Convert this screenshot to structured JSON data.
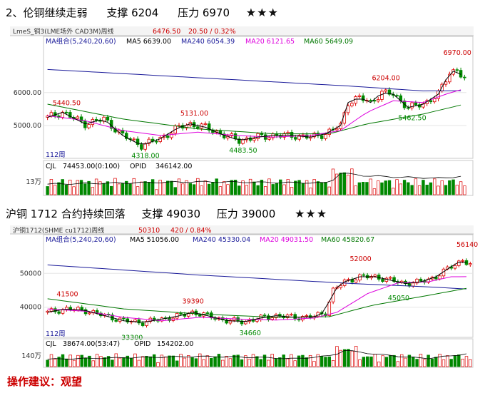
{
  "sections": [
    {
      "heading": {
        "title": "2、伦铜继续走弱",
        "support_label": "支撑 6204",
        "resistance_label": "压力 6970",
        "stars": "★★★"
      },
      "topbar": {
        "symbol": "LmeS_铜3(LME场外 CAD3M)周线",
        "price": "6476.50",
        "change": "20.50 / 0.32%"
      },
      "ma_legend": {
        "group": "MA组合(5,240,20,60)",
        "ma5": "MA5 6639.00",
        "ma240": "MA240 6054.39",
        "ma20": "MA20 6121.65",
        "ma60": "MA60 5649.09"
      },
      "period": "112周",
      "volume_legend": {
        "cjl": "CJL",
        "cjl_value": "74453.00(0:100)",
        "opid": "OPID",
        "opid_value": "346142.00"
      },
      "volume_axis": "13万",
      "colors": {
        "up": "#dd0000",
        "down": "#008800",
        "ma5": "#000000",
        "ma20": "#dd00dd",
        "ma60": "#007700",
        "ma240": "#1a1a99"
      },
      "chart_data": {
        "type": "candlestick",
        "y_ticks": [
          "6000.00",
          "5000.00"
        ],
        "y_tick_values": [
          6000,
          5000
        ],
        "ylim": [
          4050,
          7400
        ],
        "x_count": 112,
        "annotations": [
          {
            "text": "5440.50",
            "index": 4,
            "value": 5440.5
          },
          {
            "text": "5131.00",
            "index": 38,
            "value": 5131
          },
          {
            "text": "4318.00",
            "index": 25,
            "value": 4318
          },
          {
            "text": "4483.50",
            "index": 51,
            "value": 4483.5
          },
          {
            "text": "6204.00",
            "index": 89,
            "value": 6204
          },
          {
            "text": "5462.50",
            "index": 96,
            "value": 5462.5
          },
          {
            "text": "6970.00",
            "index": 108,
            "value": 6970
          }
        ],
        "close_path": [
          [
            0,
            5250
          ],
          [
            4,
            5400
          ],
          [
            10,
            5050
          ],
          [
            15,
            5200
          ],
          [
            20,
            4700
          ],
          [
            25,
            4400
          ],
          [
            30,
            4600
          ],
          [
            35,
            4950
          ],
          [
            38,
            5050
          ],
          [
            42,
            4950
          ],
          [
            46,
            4750
          ],
          [
            51,
            4550
          ],
          [
            56,
            4650
          ],
          [
            60,
            4700
          ],
          [
            65,
            4700
          ],
          [
            70,
            4650
          ],
          [
            74,
            4750
          ],
          [
            78,
            5000
          ],
          [
            80,
            5700
          ],
          [
            83,
            5850
          ],
          [
            86,
            5700
          ],
          [
            89,
            6000
          ],
          [
            92,
            5950
          ],
          [
            96,
            5550
          ],
          [
            100,
            5650
          ],
          [
            104,
            5950
          ],
          [
            107,
            6600
          ],
          [
            109,
            6700
          ],
          [
            111,
            6400
          ]
        ],
        "ma20_path": [
          [
            0,
            5300
          ],
          [
            10,
            5150
          ],
          [
            20,
            4850
          ],
          [
            30,
            4700
          ],
          [
            40,
            4800
          ],
          [
            50,
            4700
          ],
          [
            60,
            4650
          ],
          [
            70,
            4700
          ],
          [
            78,
            4850
          ],
          [
            85,
            5400
          ],
          [
            92,
            5750
          ],
          [
            100,
            5700
          ],
          [
            106,
            5950
          ],
          [
            111,
            6120
          ]
        ],
        "ma60_path": [
          [
            0,
            5650
          ],
          [
            20,
            5200
          ],
          [
            40,
            4900
          ],
          [
            60,
            4750
          ],
          [
            75,
            4750
          ],
          [
            85,
            5050
          ],
          [
            100,
            5350
          ],
          [
            111,
            5650
          ]
        ],
        "ma240_path": [
          [
            0,
            6700
          ],
          [
            40,
            6450
          ],
          [
            80,
            6200
          ],
          [
            100,
            6050
          ],
          [
            111,
            6054
          ]
        ],
        "volume_max": 100,
        "opid_path": [
          [
            0,
            45
          ],
          [
            20,
            50
          ],
          [
            40,
            55
          ],
          [
            60,
            52
          ],
          [
            75,
            50
          ],
          [
            78,
            92
          ],
          [
            85,
            80
          ],
          [
            95,
            74
          ],
          [
            105,
            70
          ],
          [
            111,
            80
          ]
        ]
      }
    },
    {
      "heading": {
        "title": "沪铜 1712 合约持续回落",
        "support_label": "支撑 49030",
        "resistance_label": "压力 39000",
        "stars": "★★★"
      },
      "topbar": {
        "symbol": "沪铜1712(SHME cu1712)周线",
        "price": "50310",
        "change": "420 / 0.84%"
      },
      "ma_legend": {
        "group": "MA组合(5,240,20,60)",
        "ma5": "MA5 51056.00",
        "ma240": "MA240 45330.04",
        "ma20": "MA20 49031.50",
        "ma60": "MA60 45820.67"
      },
      "period": "112周",
      "volume_legend": {
        "cjl": "CJL",
        "cjl_value": "38674.00(53:47)",
        "opid": "OPID",
        "opid_value": "154202.00"
      },
      "volume_axis": "140万",
      "colors": {
        "up": "#dd0000",
        "down": "#008800",
        "ma5": "#000000",
        "ma20": "#dd00dd",
        "ma60": "#007700",
        "ma240": "#1a1a99"
      },
      "chart_data": {
        "type": "candlestick",
        "y_ticks": [
          "50000",
          "40000"
        ],
        "y_tick_values": [
          50000,
          40000
        ],
        "ylim": [
          31500,
          58500
        ],
        "x_count": 112,
        "annotations": [
          {
            "text": "41500",
            "index": 5,
            "value": 41500
          },
          {
            "text": "39390",
            "index": 38,
            "value": 39390
          },
          {
            "text": "33300",
            "index": 22,
            "value": 33300
          },
          {
            "text": "34660",
            "index": 53,
            "value": 34660
          },
          {
            "text": "52000",
            "index": 82,
            "value": 52000
          },
          {
            "text": "45050",
            "index": 92,
            "value": 45050
          },
          {
            "text": "56140",
            "index": 110,
            "value": 56140
          }
        ],
        "close_path": [
          [
            0,
            38500
          ],
          [
            5,
            39500
          ],
          [
            10,
            39000
          ],
          [
            15,
            37500
          ],
          [
            20,
            36000
          ],
          [
            25,
            35500
          ],
          [
            30,
            36500
          ],
          [
            35,
            37500
          ],
          [
            38,
            38500
          ],
          [
            42,
            37500
          ],
          [
            47,
            36000
          ],
          [
            52,
            35800
          ],
          [
            56,
            36800
          ],
          [
            60,
            37500
          ],
          [
            65,
            37000
          ],
          [
            70,
            37200
          ],
          [
            73,
            38500
          ],
          [
            75,
            45000
          ],
          [
            78,
            47500
          ],
          [
            82,
            49000
          ],
          [
            86,
            49000
          ],
          [
            90,
            48000
          ],
          [
            94,
            47000
          ],
          [
            98,
            47500
          ],
          [
            102,
            49000
          ],
          [
            106,
            52000
          ],
          [
            109,
            54000
          ],
          [
            111,
            52500
          ]
        ],
        "ma20_path": [
          [
            0,
            39500
          ],
          [
            10,
            38800
          ],
          [
            20,
            37000
          ],
          [
            30,
            36000
          ],
          [
            40,
            37000
          ],
          [
            50,
            36500
          ],
          [
            60,
            36200
          ],
          [
            70,
            36800
          ],
          [
            76,
            38500
          ],
          [
            84,
            44000
          ],
          [
            92,
            47200
          ],
          [
            100,
            47500
          ],
          [
            106,
            49000
          ],
          [
            111,
            49030
          ]
        ],
        "ma60_path": [
          [
            0,
            42500
          ],
          [
            20,
            39500
          ],
          [
            40,
            38000
          ],
          [
            60,
            37000
          ],
          [
            74,
            37200
          ],
          [
            85,
            40500
          ],
          [
            100,
            43500
          ],
          [
            111,
            45800
          ]
        ],
        "ma240_path": [
          [
            0,
            52500
          ],
          [
            40,
            49500
          ],
          [
            80,
            47000
          ],
          [
            100,
            46000
          ],
          [
            111,
            45330
          ]
        ],
        "volume_max": 100,
        "opid_path": [
          [
            0,
            40
          ],
          [
            20,
            48
          ],
          [
            40,
            55
          ],
          [
            55,
            50
          ],
          [
            65,
            42
          ],
          [
            75,
            60
          ],
          [
            78,
            88
          ],
          [
            85,
            70
          ],
          [
            95,
            50
          ],
          [
            100,
            45
          ],
          [
            106,
            58
          ],
          [
            111,
            72
          ]
        ]
      }
    }
  ],
  "advice": "操作建议：观望"
}
